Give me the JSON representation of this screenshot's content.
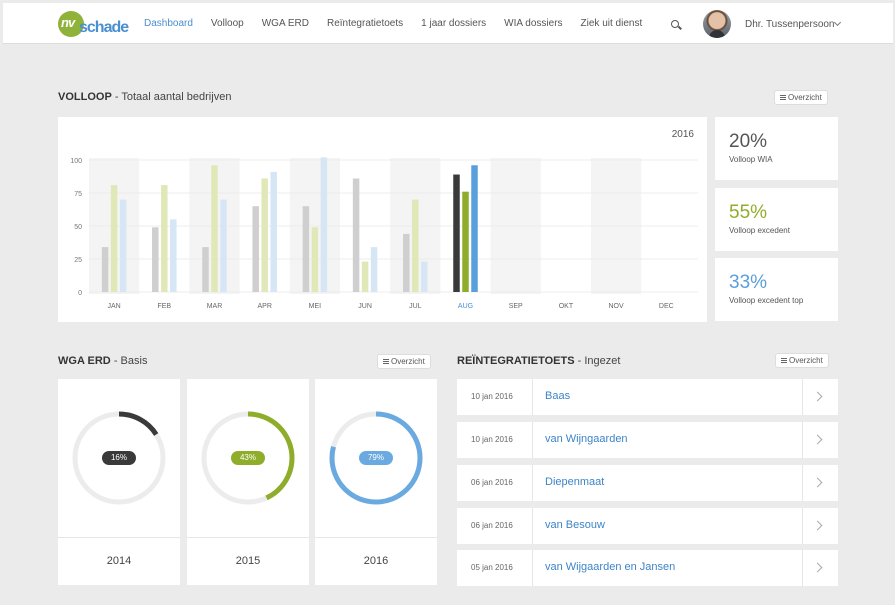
{
  "brand": {
    "nv": "nv",
    "schade": "schade"
  },
  "nav": {
    "items": [
      "Dashboard",
      "Volloop",
      "WGA ERD",
      "Reïntegratietoets",
      "1 jaar dossiers",
      "WIA dossiers",
      "Ziek uit dienst"
    ],
    "active": "Dashboard"
  },
  "user": {
    "name": "Dhr. Tussenpersoon"
  },
  "volloop": {
    "title": "VOLLOOP",
    "subtitle": " - Totaal aantal bedrijven",
    "overzicht": "Overzicht"
  },
  "chart_data": {
    "type": "bar",
    "title": "2016",
    "categories": [
      "JAN",
      "FEB",
      "MAR",
      "APR",
      "MEI",
      "JUN",
      "JUL",
      "AUG",
      "SEP",
      "OKT",
      "NOV",
      "DEC"
    ],
    "highlight": "AUG",
    "y_ticks": [
      0,
      25,
      50,
      75,
      100
    ],
    "ylim": [
      0,
      100
    ],
    "series": [
      {
        "name": "Volloop WIA",
        "values": [
          34,
          49,
          34,
          65,
          65,
          86,
          44,
          89,
          null,
          null,
          null,
          null
        ]
      },
      {
        "name": "Volloop excedent",
        "values": [
          81,
          81,
          96,
          86,
          49,
          23,
          70,
          76,
          null,
          null,
          null,
          null
        ]
      },
      {
        "name": "Volloop excedent top",
        "values": [
          70,
          55,
          70,
          91,
          102,
          34,
          23,
          96,
          null,
          null,
          null,
          null
        ]
      }
    ],
    "colors": {
      "faded": [
        "#cfcfcf",
        "#e0e8b8",
        "#d6e6f5"
      ],
      "active": [
        "#3a3a3a",
        "#8fad2b",
        "#5a9fdc"
      ],
      "shade": "#f4f4f4",
      "grid": "#ececec"
    }
  },
  "stats": [
    {
      "value": "20%",
      "label": "Volloop WIA",
      "color": "#555555"
    },
    {
      "value": "55%",
      "label": "Volloop excedent",
      "color": "#8fad2b"
    },
    {
      "value": "33%",
      "label": "Volloop excedent top",
      "color": "#5a9fdc"
    }
  ],
  "wga": {
    "title": "WGA ERD",
    "subtitle": " - Basis",
    "overzicht": "Overzicht",
    "items": [
      {
        "year": "2014",
        "percent": 16,
        "label": "16%",
        "color": "#3a3a3a"
      },
      {
        "year": "2015",
        "percent": 43,
        "label": "43%",
        "color": "#8fad2b"
      },
      {
        "year": "2016",
        "percent": 79,
        "label": "79%",
        "color": "#6aaae0"
      }
    ]
  },
  "reintegratie": {
    "title": "REÏNTEGRATIETOETS",
    "subtitle": " - Ingezet",
    "overzicht": "Overzicht",
    "rows": [
      {
        "date": "10 jan 2016",
        "name": "Baas"
      },
      {
        "date": "10 jan 2016",
        "name": "van Wijngaarden"
      },
      {
        "date": "06 jan 2016",
        "name": "Diepenmaat"
      },
      {
        "date": "06 jan 2016",
        "name": "van Besouw"
      },
      {
        "date": "05 jan 2016",
        "name": "van Wijgaarden en Jansen"
      }
    ]
  }
}
